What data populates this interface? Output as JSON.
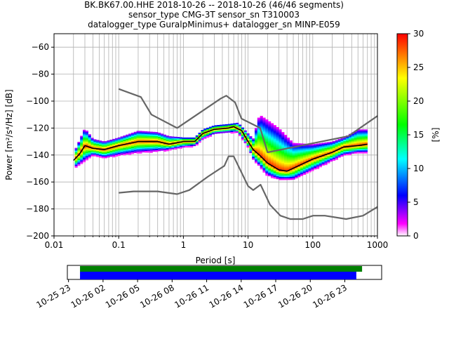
{
  "header": {
    "title_line1": "BK.BK67.00.HHE   2018-10-26 -- 2018-10-26  (46/46 segments)",
    "title_line2": "sensor_type CMG-3T sensor_sn T310003",
    "title_line3": "datalogger_type GuralpMinimus+ datalogger_sn MINP-E059"
  },
  "chart_data": [
    {
      "type": "heatmap",
      "xlabel": "Period [s]",
      "ylabel": "Power [m²/s⁴/Hz] [dB]",
      "x_scale": "log",
      "xlim": [
        0.01,
        1000
      ],
      "ylim": [
        -200,
        -50
      ],
      "x_ticks": [
        {
          "value": 0.01,
          "label": "0.01"
        },
        {
          "value": 0.1,
          "label": "0.1"
        },
        {
          "value": 1,
          "label": "1"
        },
        {
          "value": 10,
          "label": "10"
        },
        {
          "value": 100,
          "label": "100"
        },
        {
          "value": 1000,
          "label": "1000"
        }
      ],
      "y_ticks": [
        {
          "value": -60,
          "label": "−60"
        },
        {
          "value": -80,
          "label": "−80"
        },
        {
          "value": -100,
          "label": "−100"
        },
        {
          "value": -120,
          "label": "−120"
        },
        {
          "value": -140,
          "label": "−140"
        },
        {
          "value": -160,
          "label": "−160"
        },
        {
          "value": -180,
          "label": "−180"
        },
        {
          "value": -200,
          "label": "−200"
        }
      ],
      "grid": true,
      "colorbar": {
        "label": "[%]",
        "range": [
          0,
          30
        ],
        "ticks": [
          {
            "value": 0,
            "label": "0"
          },
          {
            "value": 5,
            "label": "5"
          },
          {
            "value": 10,
            "label": "10"
          },
          {
            "value": 15,
            "label": "15"
          },
          {
            "value": 20,
            "label": "20"
          },
          {
            "value": 25,
            "label": "25"
          },
          {
            "value": 30,
            "label": "30"
          }
        ],
        "colors": [
          "#ffffff",
          "#ff00ff",
          "#0000ff",
          "#00ffff",
          "#00ff00",
          "#ffff00",
          "#ff0000"
        ]
      },
      "series": [
        {
          "role": "high_noise_model",
          "color": "#666666",
          "points": [
            [
              0.1,
              -91
            ],
            [
              0.22,
              -97
            ],
            [
              0.32,
              -110
            ],
            [
              0.8,
              -120
            ],
            [
              3.8,
              -98
            ],
            [
              4.6,
              -96
            ],
            [
              6.3,
              -101
            ],
            [
              7.9,
              -113
            ],
            [
              15.4,
              -120
            ],
            [
              20,
              -138
            ],
            [
              354,
              -126
            ],
            [
              1000,
              -111
            ]
          ]
        },
        {
          "role": "low_noise_model",
          "color": "#666666",
          "points": [
            [
              0.1,
              -168
            ],
            [
              0.17,
              -167
            ],
            [
              0.4,
              -167
            ],
            [
              0.8,
              -169
            ],
            [
              1.24,
              -166
            ],
            [
              2.4,
              -156
            ],
            [
              4.3,
              -148
            ],
            [
              5.0,
              -141
            ],
            [
              6.0,
              -141
            ],
            [
              10,
              -163
            ],
            [
              12,
              -166
            ],
            [
              15.6,
              -162
            ],
            [
              21.9,
              -177
            ],
            [
              31.6,
              -185
            ],
            [
              45,
              -187.5
            ],
            [
              70,
              -187.5
            ],
            [
              101,
              -185
            ],
            [
              154,
              -185
            ],
            [
              328,
              -187.5
            ],
            [
              600,
              -185
            ],
            [
              1000,
              -178.5
            ]
          ]
        },
        {
          "role": "mode",
          "color": "#000000",
          "points": [
            [
              0.02,
              -144
            ],
            [
              0.025,
              -139
            ],
            [
              0.03,
              -133
            ],
            [
              0.04,
              -135
            ],
            [
              0.06,
              -136
            ],
            [
              0.1,
              -133
            ],
            [
              0.2,
              -130
            ],
            [
              0.4,
              -130
            ],
            [
              0.6,
              -132
            ],
            [
              1.0,
              -130
            ],
            [
              1.5,
              -130
            ],
            [
              2.0,
              -124
            ],
            [
              3.0,
              -121
            ],
            [
              5.0,
              -120
            ],
            [
              6.0,
              -119
            ],
            [
              8.0,
              -122
            ],
            [
              10,
              -130
            ],
            [
              12,
              -136
            ],
            [
              15,
              -140
            ],
            [
              20,
              -146
            ],
            [
              30,
              -151
            ],
            [
              40,
              -152
            ],
            [
              60,
              -148
            ],
            [
              100,
              -143
            ],
            [
              200,
              -138
            ],
            [
              300,
              -134
            ],
            [
              500,
              -133
            ],
            [
              700,
              -132
            ]
          ]
        }
      ],
      "spread_upper": [
        [
          0.02,
          -139
        ],
        [
          0.03,
          -120
        ],
        [
          0.04,
          -128
        ],
        [
          0.06,
          -130
        ],
        [
          0.1,
          -127
        ],
        [
          0.2,
          -122
        ],
        [
          0.4,
          -123
        ],
        [
          0.6,
          -126
        ],
        [
          1.0,
          -127
        ],
        [
          1.5,
          -127
        ],
        [
          2.0,
          -121
        ],
        [
          3.0,
          -118
        ],
        [
          5.0,
          -117
        ],
        [
          7.0,
          -116
        ],
        [
          10,
          -124
        ],
        [
          12,
          -128
        ],
        [
          15,
          -110
        ],
        [
          20,
          -114
        ],
        [
          30,
          -120
        ],
        [
          50,
          -131
        ],
        [
          100,
          -132
        ],
        [
          200,
          -130
        ],
        [
          300,
          -127
        ],
        [
          500,
          -121
        ],
        [
          700,
          -121
        ]
      ],
      "spread_lower": [
        [
          0.02,
          -150
        ],
        [
          0.03,
          -144
        ],
        [
          0.04,
          -140
        ],
        [
          0.06,
          -142
        ],
        [
          0.1,
          -140
        ],
        [
          0.2,
          -138
        ],
        [
          0.4,
          -137
        ],
        [
          0.6,
          -136
        ],
        [
          1.0,
          -134
        ],
        [
          1.5,
          -133
        ],
        [
          2.0,
          -128
        ],
        [
          3.0,
          -124
        ],
        [
          5.0,
          -123
        ],
        [
          7.0,
          -123
        ],
        [
          10,
          -134
        ],
        [
          12,
          -143
        ],
        [
          15,
          -148
        ],
        [
          20,
          -155
        ],
        [
          30,
          -158
        ],
        [
          50,
          -158
        ],
        [
          100,
          -151
        ],
        [
          200,
          -144
        ],
        [
          300,
          -140
        ],
        [
          500,
          -138
        ],
        [
          700,
          -138
        ]
      ]
    },
    {
      "type": "bar",
      "role": "data_availability",
      "tick_labels": [
        "10-25 23",
        "10-26 02",
        "10-26 05",
        "10-26 08",
        "10-26 11",
        "10-26 14",
        "10-26 17",
        "10-26 20",
        "10-26 23"
      ],
      "x_range_hours": [
        -1.1,
        26.2
      ],
      "bars": [
        {
          "role": "processed",
          "color": "#008000",
          "start_h": 0,
          "end_h": 24.5
        },
        {
          "role": "used",
          "color": "#0000ff",
          "start_h": 0,
          "end_h": 24.0
        }
      ]
    }
  ]
}
